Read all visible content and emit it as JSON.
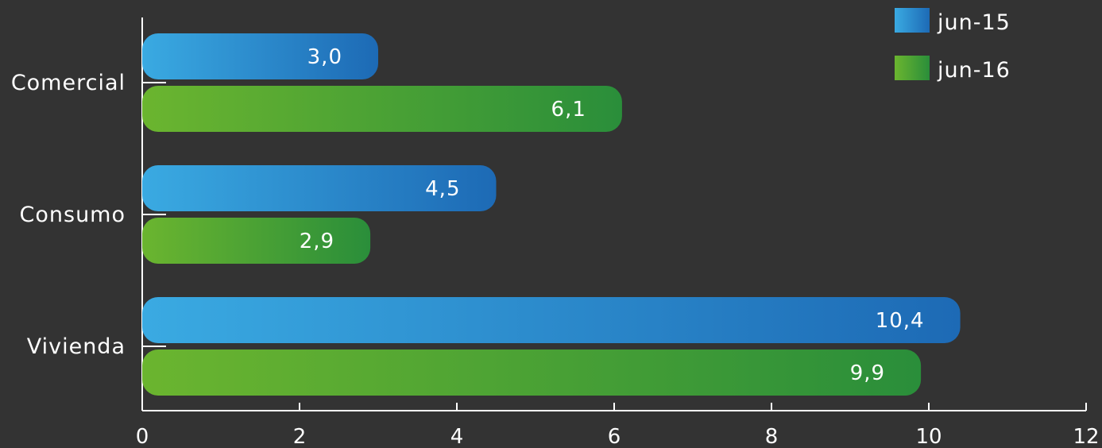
{
  "chart_data": {
    "type": "bar",
    "orientation": "horizontal",
    "categories": [
      "Comercial",
      "Consumo",
      "Vivienda"
    ],
    "series": [
      {
        "name": "jun-15",
        "values": [
          3.0,
          4.5,
          10.4
        ],
        "labels": [
          "3,0",
          "4,5",
          "10,4"
        ],
        "color_start": "#3aaae2",
        "color_end": "#1d6ab5"
      },
      {
        "name": "jun-16",
        "values": [
          6.1,
          2.9,
          9.9
        ],
        "labels": [
          "6,1",
          "2,9",
          "9,9"
        ],
        "color_start": "#6bb52f",
        "color_end": "#2a8e3a"
      }
    ],
    "xlim": [
      0,
      12
    ],
    "xticks": [
      0,
      2,
      4,
      6,
      8,
      10,
      12
    ],
    "xtick_labels": [
      "0",
      "2",
      "4",
      "6",
      "8",
      "10",
      "12"
    ],
    "legend": "top-right",
    "grid": false,
    "background": "#333333",
    "axis_color": "#ffffff"
  }
}
